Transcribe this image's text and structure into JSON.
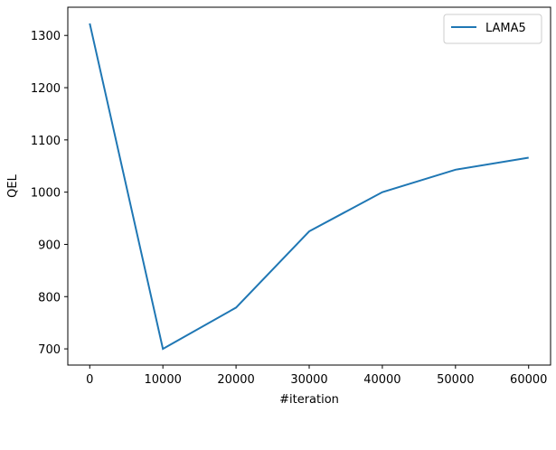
{
  "chart_data": {
    "type": "line",
    "x_label": "#iteration",
    "y_label": "QEL",
    "x": [
      0,
      10000,
      20000,
      30000,
      40000,
      50000,
      60000
    ],
    "series": [
      {
        "name": "LAMA5",
        "color": "#1f77b4",
        "values": [
          1323,
          700,
          779,
          925,
          1000,
          1043,
          1066
        ]
      }
    ],
    "xlim": [
      -3000,
      63000
    ],
    "xticks": [
      0,
      10000,
      20000,
      30000,
      40000,
      50000,
      60000
    ],
    "ylim": [
      669,
      1354
    ],
    "yticks": [
      700,
      800,
      900,
      1000,
      1100,
      1200,
      1300
    ],
    "legend": "upper right",
    "grid": false
  }
}
